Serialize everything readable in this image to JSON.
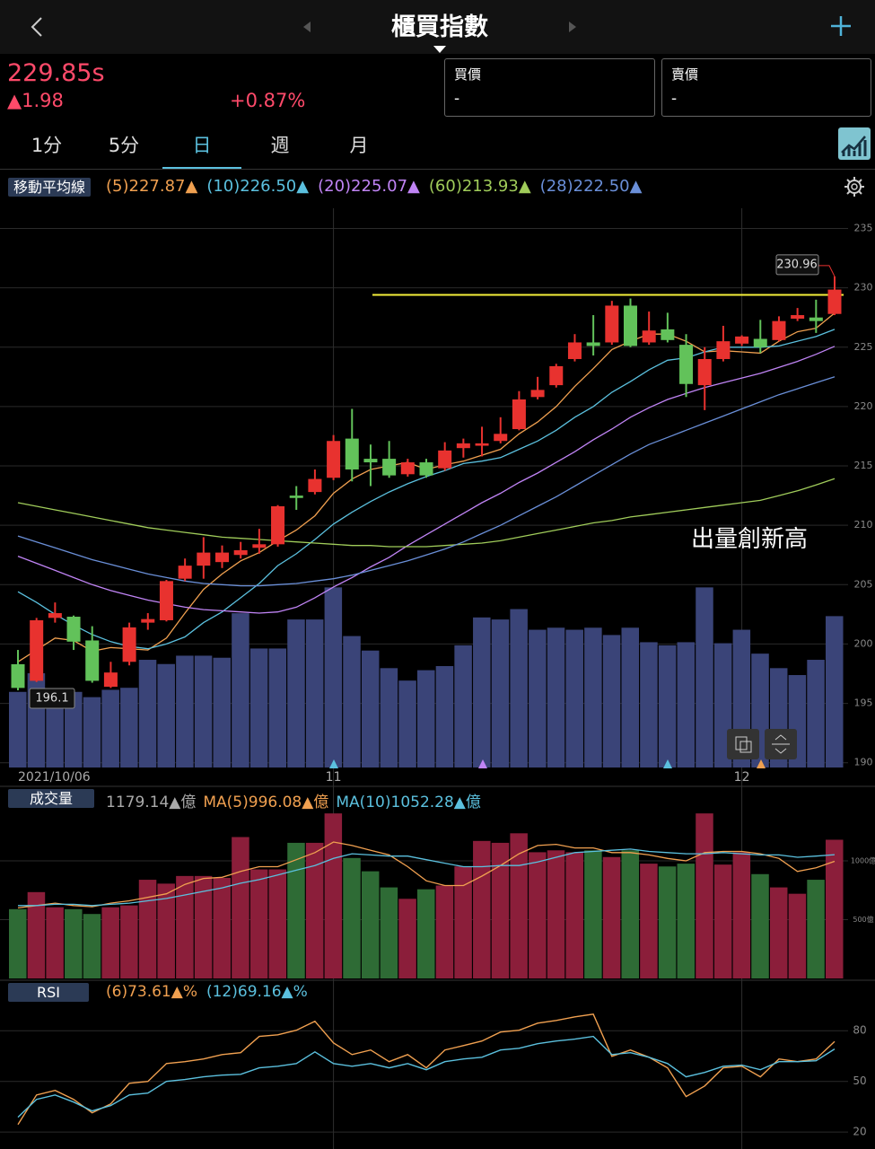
{
  "header": {
    "title": "櫃買指數"
  },
  "quote": {
    "price": "229.85s",
    "change": "▲1.98",
    "percent": "+0.87%",
    "bid_label": "買價",
    "bid": "-",
    "ask_label": "賣價",
    "ask": "-"
  },
  "tabs": [
    "1分",
    "5分",
    "日",
    "週",
    "月"
  ],
  "active_tab": 2,
  "annotation": "出量創新高",
  "chart_data": [
    {
      "type": "candlestick",
      "title": "移動平均線",
      "x_labels": [
        {
          "index": 0,
          "label": "2021/10/06"
        },
        {
          "index": 17,
          "label": "11"
        },
        {
          "index": 39,
          "label": "12"
        }
      ],
      "open": [
        198.3,
        196.9,
        202.2,
        202.3,
        200.3,
        196.4,
        198.5,
        201.8,
        202.0,
        205.5,
        206.6,
        206.9,
        207.5,
        208.1,
        208.4,
        212.5,
        212.8,
        214.0,
        217.3,
        215.6,
        215.6,
        214.3,
        215.3,
        214.8,
        216.5,
        216.7,
        217.1,
        218.1,
        220.8,
        221.8,
        224.0,
        225.4,
        225.4,
        228.5,
        225.4,
        226.5,
        225.2,
        221.8,
        224.0,
        225.3,
        225.7,
        225.6,
        227.4,
        227.5,
        227.8
      ],
      "high": [
        199.5,
        202.2,
        203.5,
        202.4,
        201.5,
        198.5,
        201.8,
        202.6,
        205.4,
        207.2,
        209.0,
        208.3,
        208.6,
        209.7,
        211.7,
        213.3,
        214.7,
        217.6,
        219.8,
        216.8,
        217.1,
        215.6,
        215.6,
        217.0,
        217.3,
        218.3,
        219.1,
        221.3,
        222.5,
        223.6,
        226.1,
        227.7,
        228.9,
        229.1,
        228.0,
        227.9,
        226.1,
        225.0,
        226.8,
        226.0,
        227.3,
        227.6,
        228.3,
        229.0,
        230.96
      ],
      "low": [
        196.1,
        196.8,
        201.8,
        199.5,
        196.74,
        196.3,
        198.2,
        201.2,
        201.9,
        205.3,
        205.5,
        206.4,
        207.2,
        207.6,
        208.2,
        211.3,
        212.6,
        213.8,
        213.7,
        213.3,
        214.0,
        214.1,
        214.0,
        214.6,
        215.7,
        215.8,
        216.9,
        218.0,
        220.6,
        221.6,
        223.8,
        224.3,
        225.2,
        225.0,
        225.2,
        225.4,
        220.8,
        219.7,
        223.8,
        225.1,
        224.5,
        225.5,
        227.2,
        226.2,
        227.7
      ],
      "close": [
        196.3,
        202.0,
        202.6,
        200.2,
        196.9,
        197.6,
        201.4,
        202.1,
        205.3,
        206.6,
        207.7,
        207.7,
        207.9,
        208.4,
        211.6,
        212.3,
        213.9,
        217.1,
        214.7,
        215.3,
        214.2,
        215.3,
        214.2,
        216.3,
        216.9,
        216.9,
        217.7,
        220.6,
        221.4,
        223.4,
        225.4,
        225.1,
        228.5,
        225.1,
        226.4,
        225.6,
        221.9,
        224.0,
        225.5,
        225.9,
        225.0,
        227.2,
        227.7,
        227.2,
        229.85
      ],
      "up_color": "#e8322f",
      "down_color": "#62c25a",
      "series": [
        {
          "name": "(5)227.87▲",
          "color": "#f0a050",
          "values": [
            198.5,
            199.5,
            200.5,
            200.3,
            199.4,
            199.7,
            199.6,
            199.5,
            200.5,
            202.6,
            204.6,
            205.9,
            207.0,
            207.7,
            208.7,
            209.6,
            210.8,
            212.7,
            213.9,
            214.7,
            215.0,
            215.3,
            214.7,
            215.1,
            215.4,
            215.9,
            216.4,
            217.7,
            218.7,
            220.0,
            221.7,
            223.2,
            224.8,
            225.5,
            226.1,
            226.1,
            225.5,
            224.6,
            224.7,
            224.6,
            224.5,
            225.5,
            226.3,
            226.6,
            227.87
          ]
        },
        {
          "name": "(10)226.50▲",
          "color": "#5bc0de",
          "values": [
            204.4,
            203.5,
            202.5,
            201.6,
            200.8,
            200.2,
            199.8,
            199.6,
            200.0,
            200.6,
            201.8,
            202.7,
            203.9,
            205.1,
            206.6,
            207.6,
            208.8,
            210.1,
            211.1,
            212.0,
            212.8,
            213.5,
            214.1,
            214.6,
            215.2,
            215.4,
            215.7,
            216.4,
            217.1,
            218.0,
            219.1,
            220.0,
            221.2,
            222.1,
            223.1,
            223.9,
            224.1,
            224.6,
            225.0,
            225.0,
            225.0,
            225.1,
            225.5,
            225.9,
            226.5
          ]
        },
        {
          "name": "(20)225.07▲",
          "color": "#c084f5",
          "values": [
            207.4,
            206.8,
            206.2,
            205.6,
            205.0,
            204.5,
            204.1,
            203.7,
            203.4,
            203.1,
            202.9,
            202.8,
            202.7,
            202.6,
            202.7,
            203.1,
            203.9,
            204.8,
            205.6,
            206.5,
            207.3,
            208.3,
            209.2,
            210.1,
            211.0,
            211.9,
            212.7,
            213.6,
            214.4,
            215.3,
            216.2,
            217.2,
            218.1,
            219.1,
            219.9,
            220.6,
            221.1,
            221.6,
            222.0,
            222.4,
            222.8,
            223.3,
            223.8,
            224.4,
            225.07
          ]
        },
        {
          "name": "(60)213.93▲",
          "color": "#a0cc5a",
          "values": [
            211.9,
            211.6,
            211.3,
            211.0,
            210.7,
            210.4,
            210.1,
            209.8,
            209.6,
            209.4,
            209.2,
            209.0,
            208.9,
            208.8,
            208.7,
            208.6,
            208.5,
            208.4,
            208.3,
            208.3,
            208.2,
            208.2,
            208.2,
            208.3,
            208.4,
            208.5,
            208.7,
            209.0,
            209.3,
            209.6,
            209.9,
            210.2,
            210.4,
            210.7,
            210.9,
            211.1,
            211.3,
            211.5,
            211.7,
            211.9,
            212.1,
            212.5,
            212.9,
            213.4,
            213.93
          ]
        },
        {
          "name": "(28)222.50▲",
          "color": "#6a8fd8",
          "values": [
            209.1,
            208.6,
            208.1,
            207.6,
            207.1,
            206.7,
            206.3,
            205.9,
            205.6,
            205.3,
            205.1,
            205.0,
            204.9,
            204.9,
            205.0,
            205.1,
            205.3,
            205.5,
            205.8,
            206.2,
            206.6,
            207.0,
            207.5,
            208.0,
            208.6,
            209.3,
            210.0,
            210.8,
            211.6,
            212.4,
            213.3,
            214.2,
            215.1,
            216.0,
            216.8,
            217.4,
            218.0,
            218.6,
            219.2,
            219.8,
            220.4,
            221.0,
            221.5,
            222.0,
            222.5
          ]
        }
      ],
      "hline": {
        "value": 229.4,
        "color": "#f5f03a"
      },
      "ylim": [
        189.6,
        236.7
      ],
      "yticks": [
        235,
        230,
        225,
        220,
        215,
        210,
        205,
        200,
        195,
        190
      ],
      "grid": true
    },
    {
      "type": "bar",
      "title": "成交量",
      "series": [
        {
          "name": "1179.14▲億",
          "color": "#3a4478",
          "values": [
            589,
            734,
            605,
            589,
            548,
            605,
            621,
            839,
            806,
            871,
            871,
            855,
            1202,
            927,
            927,
            1153,
            1153,
            1403,
            1024,
            911,
            774,
            677,
            758,
            790,
            952,
            1169,
            1153,
            1234,
            1073,
            1089,
            1073,
            1089,
            1032,
            1089,
            976,
            952,
            976,
            1403,
            968,
            1073,
            887,
            774,
            720,
            839,
            1179.14
          ]
        },
        {
          "name": "MA(5)996.08▲億",
          "color": "#f0a050",
          "values": [
            600,
            620,
            640,
            620,
            610,
            640,
            660,
            690,
            720,
            800,
            850,
            860,
            910,
            950,
            950,
            1010,
            1070,
            1160,
            1130,
            1090,
            1050,
            950,
            830,
            790,
            790,
            870,
            960,
            1060,
            1130,
            1140,
            1110,
            1110,
            1070,
            1070,
            1050,
            1020,
            1000,
            1070,
            1080,
            1080,
            1060,
            1020,
            910,
            940,
            996.08
          ]
        },
        {
          "name": "MA(10)1052.28▲億",
          "color": "#5bc0de",
          "values": [
            620,
            620,
            630,
            630,
            620,
            630,
            640,
            660,
            680,
            710,
            740,
            770,
            810,
            840,
            880,
            920,
            960,
            1020,
            1060,
            1050,
            1040,
            1040,
            1010,
            980,
            950,
            950,
            960,
            960,
            990,
            1030,
            1070,
            1080,
            1090,
            1100,
            1080,
            1070,
            1060,
            1060,
            1070,
            1060,
            1050,
            1050,
            1030,
            1040,
            1052.28
          ]
        }
      ],
      "up_color": "#8b1e3a",
      "down_color": "#2e6b35",
      "ylim": [
        0,
        1450
      ],
      "yticks": [
        {
          "value": 1000,
          "label": "1000億"
        },
        {
          "value": 500,
          "label": "500億"
        }
      ],
      "grid": true
    },
    {
      "type": "line",
      "title": "RSI",
      "series": [
        {
          "name": "(6)73.61▲%",
          "color": "#f0a050",
          "values": [
            24.5,
            42.0,
            44.7,
            39.4,
            31.4,
            36.7,
            48.9,
            50,
            60.6,
            61.7,
            63.3,
            65.9,
            67.0,
            76.6,
            77.6,
            80.3,
            85.6,
            72.8,
            65.9,
            68.6,
            61.7,
            65.9,
            58.0,
            68.6,
            71.2,
            73.9,
            79.2,
            80.3,
            84.5,
            86.1,
            88.2,
            89.8,
            64.9,
            68.6,
            64.3,
            58.0,
            41.0,
            47.3,
            58.0,
            59.0,
            52.7,
            63.3,
            61.7,
            63.3,
            73.61
          ]
        },
        {
          "name": "(12)69.16▲%",
          "color": "#5bc0de",
          "values": [
            28.8,
            39.4,
            42.0,
            37.8,
            32.5,
            35.7,
            42.0,
            43.1,
            50,
            51.1,
            52.7,
            53.7,
            54.2,
            58.0,
            59.0,
            60.6,
            67.5,
            60.6,
            59.0,
            60.6,
            58.0,
            60.6,
            56.9,
            61.7,
            63.3,
            64.3,
            68.6,
            69.6,
            72.3,
            73.9,
            75.0,
            76.6,
            65.9,
            67.0,
            64.3,
            60.6,
            52.7,
            55.3,
            59.0,
            59.6,
            56.9,
            61.7,
            61.7,
            62.2,
            69.16
          ]
        }
      ],
      "ylim": [
        10,
        95
      ],
      "yticks": [
        80,
        50,
        20
      ],
      "grid": true
    }
  ]
}
